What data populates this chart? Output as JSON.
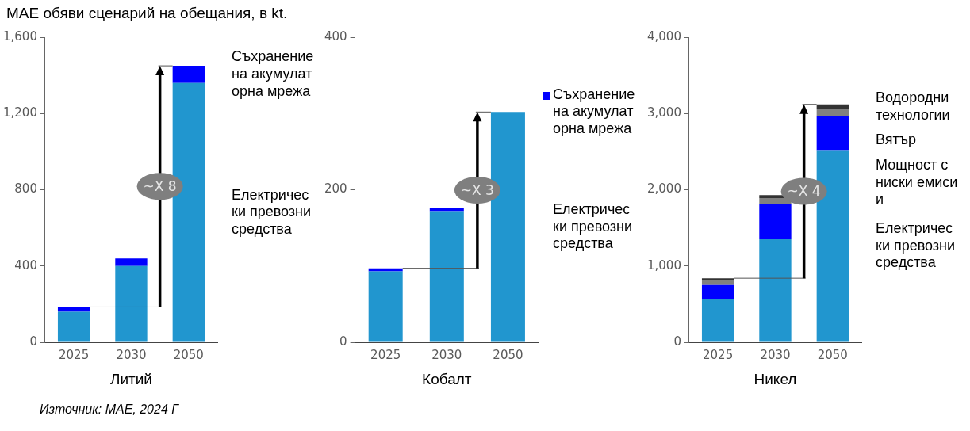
{
  "chart_data": [
    {
      "type": "bar",
      "title": "МАЕ обяви сценарий на обещания, в kt.",
      "xlabel": "Литий",
      "categories": [
        "2025",
        "2030",
        "2050"
      ],
      "stacked": true,
      "series": [
        {
          "name": "Електрически превозни средства",
          "color": "#2196cf",
          "values": [
            160,
            400,
            1360
          ]
        },
        {
          "name": "Съхранение на акумулаторна мрежа",
          "color": "#0000ff",
          "values": [
            25,
            40,
            90
          ]
        }
      ],
      "ylim": [
        0,
        1600
      ],
      "yticks": [
        0,
        400,
        800,
        {
          "value": 1200,
          "label": "1,200"
        },
        {
          "value": 1600,
          "label": "1,600"
        }
      ],
      "ref_lines": [
        {
          "axis": "y",
          "value": 185,
          "color": "#555555"
        },
        {
          "axis": "y",
          "value": 1450,
          "color": "#555555"
        }
      ],
      "annotations": [
        "~X 8",
        "Източник: МАЕ, 2024 Г"
      ]
    },
    {
      "type": "bar",
      "xlabel": "Кобалт",
      "categories": [
        "2025",
        "2030",
        "2050"
      ],
      "stacked": true,
      "series": [
        {
          "name": "Електрически превозни средства",
          "color": "#2196cf",
          "values": [
            93,
            172,
            302
          ]
        },
        {
          "name": "Съхранение на акумулаторна мрежа",
          "color": "#0000ff",
          "values": [
            4,
            4,
            0
          ]
        }
      ],
      "ylim": [
        0,
        400
      ],
      "yticks": [
        0,
        200,
        400
      ],
      "ref_lines": [
        {
          "axis": "y",
          "value": 97,
          "color": "#555555"
        },
        {
          "axis": "y",
          "value": 302,
          "color": "#555555"
        }
      ],
      "annotations": [
        "~X 3"
      ]
    },
    {
      "type": "bar",
      "xlabel": "Никел",
      "categories": [
        "2025",
        "2030",
        "2050"
      ],
      "stacked": true,
      "series": [
        {
          "name": "Електрически превозни средства",
          "color": "#2196cf",
          "values": [
            570,
            1350,
            2520
          ]
        },
        {
          "name": "Мощност с ниски емисии",
          "color": "#0000ff",
          "values": [
            180,
            460,
            440
          ]
        },
        {
          "name": "Вятър",
          "color": "#808080",
          "values": [
            70,
            80,
            100
          ]
        },
        {
          "name": "Водородни технологии",
          "color": "#333333",
          "values": [
            20,
            40,
            60
          ]
        }
      ],
      "ylim": [
        0,
        4000
      ],
      "yticks": [
        0,
        {
          "value": 1000,
          "label": "1,000"
        },
        {
          "value": 2000,
          "label": "2,000"
        },
        {
          "value": 3000,
          "label": "3,000"
        },
        {
          "value": 4000,
          "label": "4,000"
        }
      ],
      "ref_lines": [
        {
          "axis": "y",
          "value": 840,
          "color": "#555555"
        },
        {
          "axis": "y",
          "value": 3120,
          "color": "#555555"
        }
      ],
      "annotations": [
        "~X 4"
      ]
    }
  ]
}
